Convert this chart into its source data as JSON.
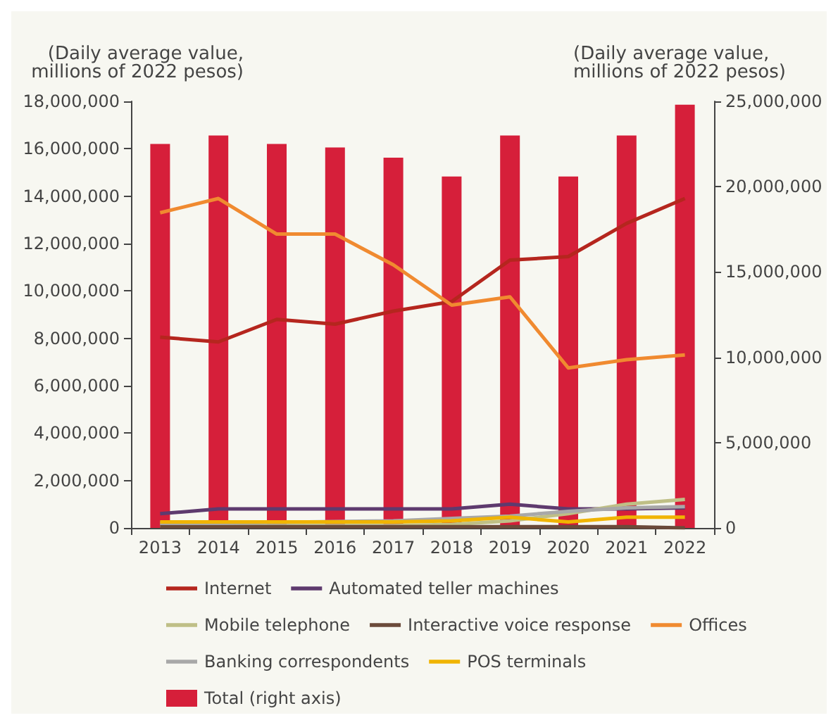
{
  "chart_data": {
    "type": "line",
    "categories": [
      "2013",
      "2014",
      "2015",
      "2016",
      "2017",
      "2018",
      "2019",
      "2020",
      "2021",
      "2022"
    ],
    "ylabel": "(Daily average value,\nmillions of 2022 pesos)",
    "y2label": "(Daily average value,\nmillions of 2022 pesos)",
    "ylim": [
      0,
      18000000
    ],
    "yticks": [
      0,
      {
        "value": 2000000,
        "label": "2,000,000"
      },
      {
        "value": 4000000,
        "label": "4,000,000"
      },
      {
        "value": 6000000,
        "label": "6,000,000"
      },
      {
        "value": 8000000,
        "label": "8,000,000"
      },
      {
        "value": 10000000,
        "label": "10,000,000"
      },
      {
        "value": 12000000,
        "label": "12,000,000"
      },
      {
        "value": 14000000,
        "label": "14,000,000"
      },
      {
        "value": 16000000,
        "label": "16,000,000"
      },
      {
        "value": 18000000,
        "label": "18,000,000"
      }
    ],
    "y2lim": [
      0,
      25000000
    ],
    "y2ticks": [
      0,
      {
        "value": 5000000,
        "label": "5,000,000"
      },
      {
        "value": 10000000,
        "label": "10,000,000"
      },
      {
        "value": 15000000,
        "label": "15,000,000"
      },
      {
        "value": 20000000,
        "label": "20,000,000"
      },
      {
        "value": 25000000,
        "label": "25,000,000"
      }
    ],
    "grid": false,
    "legend": "bottom",
    "marker": "none",
    "series": [
      {
        "name": "Internet",
        "color": "#b5261e",
        "values": [
          8050000,
          7850000,
          8800000,
          8600000,
          9150000,
          9550000,
          11300000,
          11450000,
          12850000,
          13900000
        ]
      },
      {
        "name": "Automated teller machines",
        "color": "#5e3a6e",
        "values": [
          600000,
          800000,
          800000,
          800000,
          800000,
          800000,
          1000000,
          800000,
          800000,
          850000
        ]
      },
      {
        "name": "Mobile telephone",
        "color": "#bfbf86",
        "values": [
          100000,
          100000,
          100000,
          100000,
          100000,
          150000,
          300000,
          600000,
          1000000,
          1200000
        ]
      },
      {
        "name": "Interactive voice response",
        "color": "#6b4a3a",
        "values": [
          50000,
          50000,
          50000,
          50000,
          50000,
          50000,
          50000,
          50000,
          50000,
          0
        ]
      },
      {
        "name": "Offices",
        "color": "#f08a30",
        "values": [
          13300000,
          13900000,
          12400000,
          12400000,
          11100000,
          9400000,
          9750000,
          6750000,
          7100000,
          7300000
        ]
      },
      {
        "name": "Banking correspondents",
        "color": "#a8a8a8",
        "values": [
          200000,
          200000,
          null,
          null,
          300000,
          400000,
          500000,
          700000,
          850000,
          900000
        ]
      },
      {
        "name": "POS terminals",
        "color": "#f0b400",
        "values": [
          250000,
          250000,
          250000,
          250000,
          250000,
          300000,
          450000,
          250000,
          450000,
          450000
        ]
      },
      {
        "name": "Total (right axis)",
        "type": "bar",
        "axis": "y2",
        "color": "#d61f3a",
        "values": [
          22500000,
          23000000,
          22500000,
          22300000,
          21700000,
          20600000,
          23000000,
          20600000,
          23000000,
          24800000
        ]
      }
    ]
  }
}
